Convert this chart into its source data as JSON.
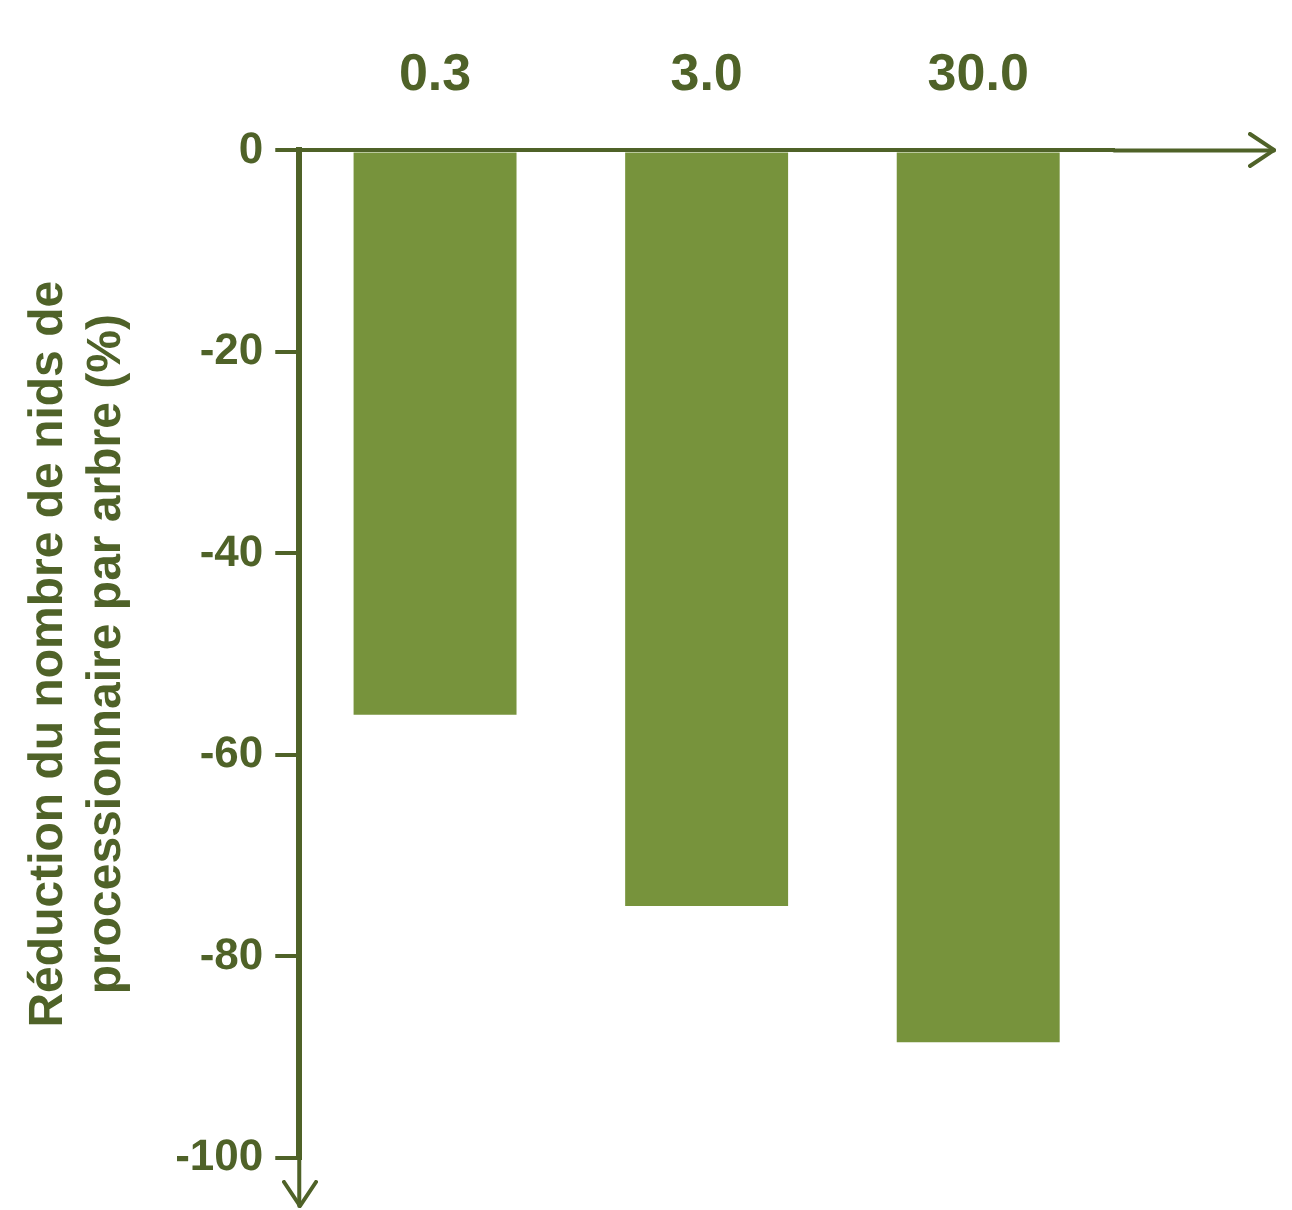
{
  "chart_data": {
    "type": "bar",
    "ylabel": "Réduction du nombre de nids de processionnaire par arbre (%)",
    "categories": [
      "0.3",
      "3.0",
      "30.0"
    ],
    "values": [
      -56,
      -75,
      -88.5
    ],
    "color": "#77933c",
    "ylim": [
      -100,
      0
    ],
    "yticks": [
      -100,
      -80,
      -60,
      -40,
      -20,
      0
    ],
    "grid": false,
    "legend": false
  }
}
